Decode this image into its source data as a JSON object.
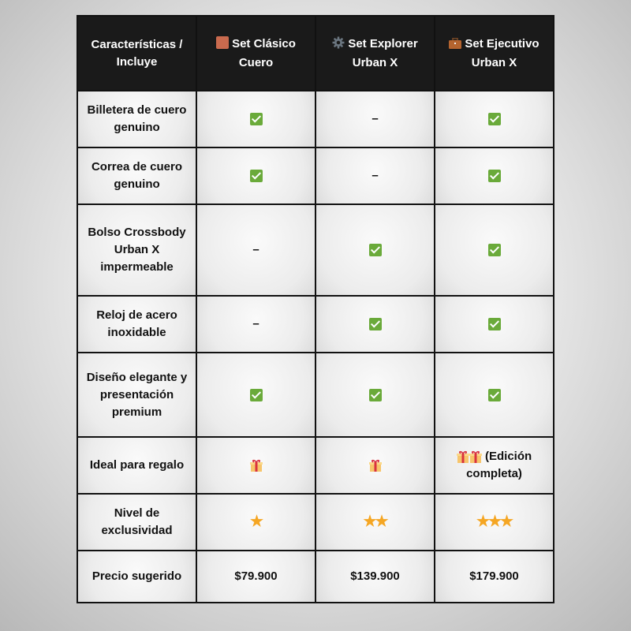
{
  "header": {
    "col0": "Características / Incluye",
    "col1": "Set Clásico Cuero",
    "col2": "Set Explorer Urban X",
    "col3": "Set Ejecutivo Urban X",
    "icons": [
      "brown-square-icon",
      "gear-icon",
      "briefcase-icon"
    ]
  },
  "rows": [
    {
      "label": "Billetera de cuero genuino",
      "cells": [
        "check",
        "–",
        "check"
      ]
    },
    {
      "label": "Correa de cuero genuino",
      "cells": [
        "check",
        "–",
        "check"
      ]
    },
    {
      "label": "Bolso Crossbody Urban X impermeable",
      "cells": [
        "–",
        "check",
        "check"
      ]
    },
    {
      "label": "Reloj de acero inoxidable",
      "cells": [
        "–",
        "check",
        "check"
      ]
    },
    {
      "label": "Diseño elegante y presentación premium",
      "cells": [
        "check",
        "check",
        "check"
      ]
    },
    {
      "label": "Ideal para regalo",
      "cells": [
        "gift",
        "gift",
        "gift-gift"
      ],
      "extra_text": "(Edición completa)"
    },
    {
      "label": "Nivel de exclusividad",
      "stars": [
        1,
        2,
        3
      ]
    },
    {
      "label": "Precio sugerido",
      "prices": [
        "$79.900",
        "$139.900",
        "$179.900"
      ]
    }
  ],
  "colors": {
    "check": "#6aaa3a",
    "star": "#f5a623",
    "header_bg": "#1a1a1a"
  }
}
